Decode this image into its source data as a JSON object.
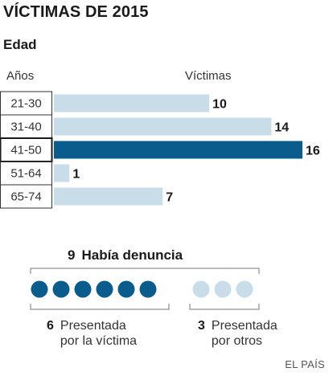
{
  "title": "VÍCTIMAS DE 2015",
  "subtitle": "Edad",
  "column_headers": {
    "age": "Años",
    "victims": "Víctimas"
  },
  "colors": {
    "highlight": "#0a5c8c",
    "normal": "#c9dde9",
    "reported_dot": "#0a5c8c",
    "other_dot": "#c9dde9"
  },
  "chart_data": {
    "type": "bar",
    "orientation": "horizontal",
    "title": "VÍCTIMAS DE 2015",
    "ylabel": "Años",
    "xlabel": "Víctimas",
    "categories": [
      "21-30",
      "31-40",
      "41-50",
      "51-64",
      "65-74"
    ],
    "values": [
      10,
      14,
      16,
      1,
      7
    ],
    "highlighted": "41-50",
    "xlim": [
      0,
      16
    ]
  },
  "denuncia": {
    "total": "9",
    "label": "Había denuncia",
    "groups": [
      {
        "count": "6",
        "line1": "Presentada",
        "line2": "por la víctima",
        "dots": 6
      },
      {
        "count": "3",
        "line1": "Presentada",
        "line2": "por otros",
        "dots": 3
      }
    ]
  },
  "source": "EL PAÍS"
}
